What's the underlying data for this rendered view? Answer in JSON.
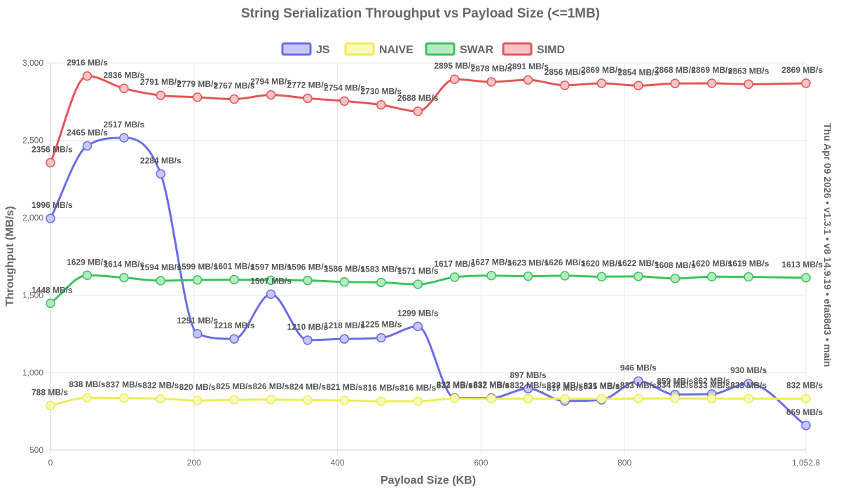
{
  "chart_data": {
    "type": "line",
    "title": "String Serialization Throughput vs Payload Size (<=1MB)",
    "xlabel": "Payload Size (KB)",
    "ylabel": "Throughput (MB/s)",
    "side_label": "Thu Apr 09 2026 • v1.3.1 • v8 14.9.19 • efa68d3 • main",
    "xlim": [
      0,
      1052.8
    ],
    "ylim": [
      500,
      3000
    ],
    "x_ticks": [
      0,
      200,
      400,
      600,
      800,
      1052.8
    ],
    "x_tick_labels": [
      "0",
      "200",
      "400",
      "600",
      "800",
      "1,052.8"
    ],
    "y_ticks": [
      500,
      1000,
      1500,
      2000,
      2500,
      3000
    ],
    "y_tick_labels": [
      "500",
      "1,000",
      "1,500",
      "2,000",
      "2,500",
      "3,000"
    ],
    "label_suffix": " MB/s",
    "x": [
      0,
      51.2,
      102.4,
      153.6,
      204.8,
      256,
      307.2,
      358.4,
      409.6,
      460.8,
      512,
      563.2,
      614.4,
      665.6,
      716.8,
      768,
      819.2,
      870.4,
      921.6,
      972.8,
      1052.8
    ],
    "series": [
      {
        "name": "JS",
        "color": "#6b6be8",
        "fill": "#c8c8f8",
        "values": [
          1996,
          2465,
          2517,
          2284,
          1251,
          1218,
          1507,
          1210,
          1218,
          1225,
          1299,
          837,
          837,
          897,
          817,
          825,
          946,
          859,
          862,
          930,
          659
        ]
      },
      {
        "name": "NAIVE",
        "color": "#eded55",
        "fill": "#fafab8",
        "values": [
          788,
          838,
          837,
          832,
          820,
          825,
          826,
          824,
          821,
          816,
          816,
          833,
          832,
          832,
          832,
          831,
          833,
          834,
          833,
          833,
          832
        ]
      },
      {
        "name": "SWAR",
        "color": "#3cc35c",
        "fill": "#b6ebc3",
        "values": [
          1448,
          1629,
          1614,
          1594,
          1599,
          1601,
          1597,
          1596,
          1586,
          1583,
          1571,
          1617,
          1627,
          1623,
          1626,
          1620,
          1622,
          1608,
          1620,
          1619,
          1613
        ]
      },
      {
        "name": "SIMD",
        "color": "#e55555",
        "fill": "#f6c4c4",
        "values": [
          2356,
          2916,
          2836,
          2791,
          2779,
          2767,
          2794,
          2772,
          2754,
          2730,
          2688,
          2895,
          2878,
          2891,
          2856,
          2869,
          2854,
          2868,
          2869,
          2863,
          2869
        ]
      }
    ]
  }
}
